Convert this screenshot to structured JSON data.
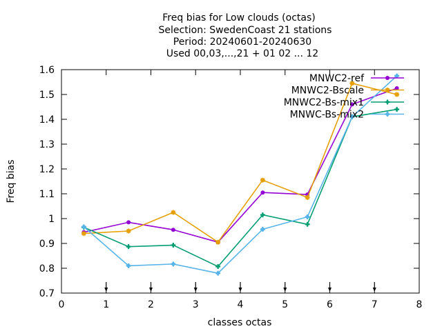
{
  "chart_data": {
    "type": "line",
    "title_lines": [
      "Freq bias  for Low clouds (octas)",
      "Selection: SwedenCoast      21 stations",
      "Period: 20240601-20240630",
      "Used 00,03,...,21 + 01 02 ... 12"
    ],
    "xlabel": "classes octas",
    "ylabel": "Freq bias",
    "xlim": [
      0,
      8
    ],
    "ylim": [
      0.7,
      1.6
    ],
    "xticks": [
      0,
      1,
      2,
      3,
      4,
      5,
      6,
      7,
      8
    ],
    "yticks": [
      0.7,
      0.8,
      0.9,
      1.0,
      1.1,
      1.2,
      1.3,
      1.4,
      1.5,
      1.6
    ],
    "xtick_labels": [
      "0",
      "1",
      "2",
      "3",
      "4",
      "5",
      "6",
      "7",
      "8"
    ],
    "ytick_labels": [
      "0.7",
      "0.8",
      "0.9",
      "1",
      "1.1",
      "1.2",
      "1.3",
      "1.4",
      "1.5",
      "1.6"
    ],
    "bottom_arrow_marks_x": [
      1,
      2,
      3,
      4,
      5,
      6,
      7
    ],
    "legend_position": "top-right",
    "grid": false,
    "series": [
      {
        "name": "MNWC2-ref",
        "color": "#9400d3",
        "x": [
          0.5,
          1.5,
          2.5,
          3.5,
          4.5,
          5.5,
          6.5,
          7.5
        ],
        "y": [
          0.945,
          0.985,
          0.955,
          0.905,
          1.105,
          1.097,
          1.46,
          1.525
        ]
      },
      {
        "name": "MNWC2-Bscale",
        "color": "#e69f00",
        "x": [
          0.5,
          1.5,
          2.5,
          3.5,
          4.5,
          5.5,
          6.5,
          7.5
        ],
        "y": [
          0.94,
          0.95,
          1.025,
          0.905,
          1.155,
          1.085,
          1.545,
          1.5
        ]
      },
      {
        "name": "MNWC2-Bs-mix1",
        "color": "#009e73",
        "x": [
          0.5,
          1.5,
          2.5,
          3.5,
          4.5,
          5.5,
          6.5,
          7.5
        ],
        "y": [
          0.965,
          0.887,
          0.893,
          0.807,
          1.015,
          0.977,
          1.41,
          1.44
        ]
      },
      {
        "name": "MNWC-Bs-mix2",
        "color": "#56b4e9",
        "x": [
          0.5,
          1.5,
          2.5,
          3.5,
          4.5,
          5.5,
          6.5,
          7.5
        ],
        "y": [
          0.967,
          0.81,
          0.817,
          0.78,
          0.957,
          1.007,
          1.41,
          1.575
        ]
      }
    ]
  }
}
